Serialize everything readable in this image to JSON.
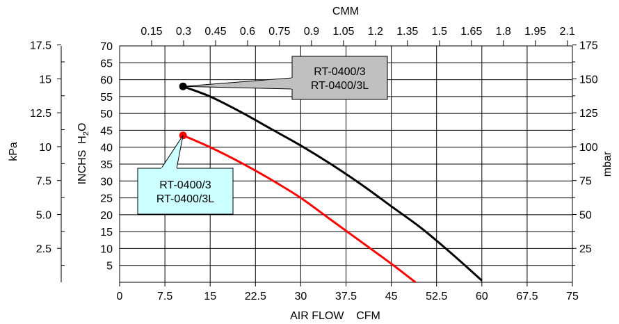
{
  "chart_data": {
    "type": "line",
    "x_bottom": {
      "label": "AIR FLOW    CFM",
      "range": [
        0,
        75
      ],
      "ticks": [
        "0",
        "7.5",
        "15",
        "22.5",
        "30",
        "37.5",
        "45",
        "52.5",
        "60",
        "67.5",
        "75"
      ]
    },
    "x_top": {
      "label": "CMM",
      "range": [
        0,
        2.124
      ],
      "ticks": [
        "0.15",
        "0.3",
        "0.45",
        "0.6",
        "0.75",
        "0.9",
        "1.05",
        "1.2",
        "1.35",
        "1.5",
        "1.65",
        "1.8",
        "1.95",
        "2.1"
      ]
    },
    "y_inner": {
      "label_main": "INCHS  H",
      "label_sub": "2",
      "label_tail": "O",
      "range": [
        0,
        70
      ],
      "ticks": [
        "5",
        "10",
        "15",
        "20",
        "25",
        "30",
        "35",
        "40",
        "45",
        "50",
        "55",
        "60",
        "65",
        "70"
      ]
    },
    "y_outer_left": {
      "label": "kPa",
      "range": [
        0,
        17.43
      ],
      "ticks": [
        "2.5",
        "5.0",
        "7.5",
        "10",
        "12.5",
        "15",
        "17.5"
      ]
    },
    "y_right": {
      "label": "mbar",
      "range": [
        0,
        174.3
      ],
      "ticks": [
        "25",
        "50",
        "75",
        "100",
        "125",
        "150",
        "175"
      ]
    },
    "grid": true,
    "series": [
      {
        "color": "#000000",
        "x": [
          10.5,
          15,
          20,
          25,
          30,
          35,
          40,
          45,
          50,
          55,
          60
        ],
        "y": [
          58,
          55,
          50.5,
          45.5,
          40.5,
          35,
          29,
          22.5,
          16,
          8.5,
          0.5
        ]
      },
      {
        "color": "#ff0000",
        "x": [
          10.5,
          15,
          20,
          25,
          30,
          35,
          40,
          45,
          49
        ],
        "y": [
          43.5,
          40,
          35.5,
          30.5,
          25,
          18.5,
          12,
          5.5,
          0
        ]
      }
    ],
    "annotations": [
      {
        "line1": "RT-0400/3",
        "line2": "RT-0400/3L",
        "fill": "#c0c0c0",
        "points_to_series": 0
      },
      {
        "line1": "RT-0400/3",
        "line2": "RT-0400/3L",
        "fill": "#ccffff",
        "points_to_series": 1
      }
    ]
  }
}
